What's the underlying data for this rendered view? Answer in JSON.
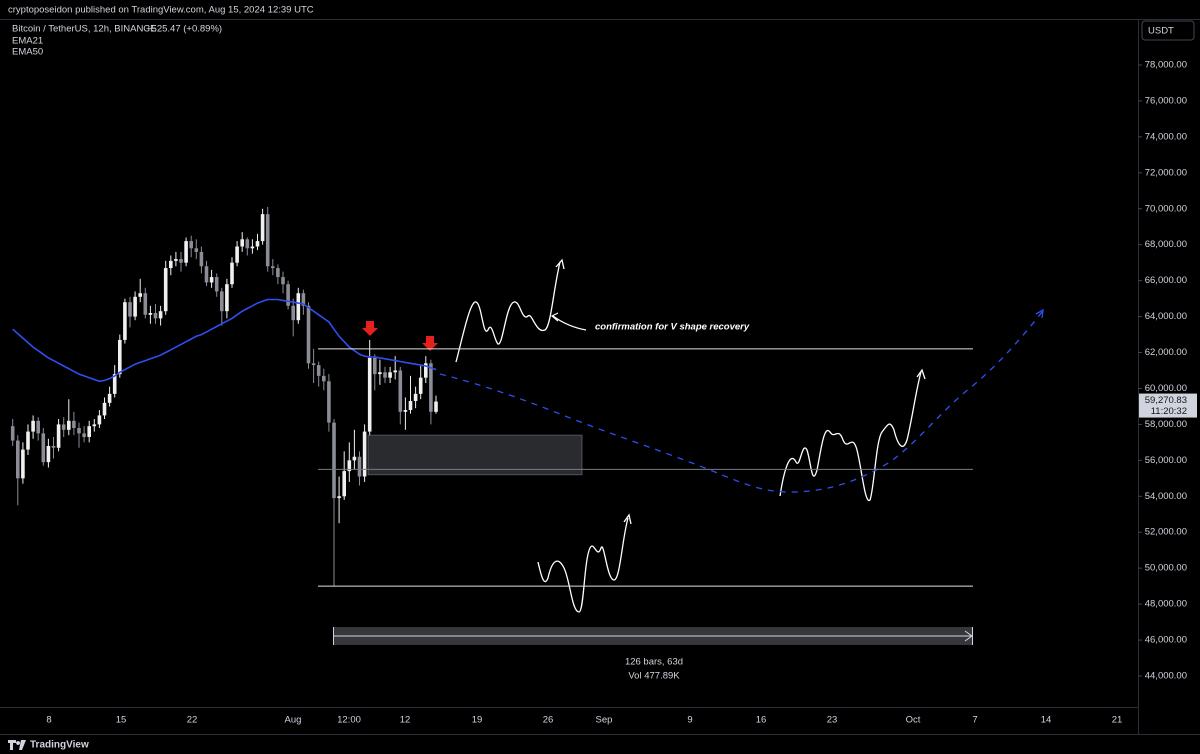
{
  "header": {
    "title": "cryptoposeidon published on TradingView.com, Aug 15, 2024 12:39 UTC",
    "brand": "TradingView"
  },
  "chart_data": {
    "type": "candlestick",
    "title": "Bitcoin / TetherUS, 12h, BINANCE",
    "change": "+525.47 (+0.89%)",
    "other_indicator": "EMA50",
    "currency": "USDT",
    "open": [
      57900,
      57100,
      55000,
      56600,
      57600,
      58200,
      57500,
      55900,
      56800,
      56700,
      58000,
      57700,
      58200,
      57800,
      57500,
      57300,
      57900,
      58000,
      58500,
      59200,
      59700,
      60800,
      62700,
      64800,
      64000,
      65100,
      65300,
      64100,
      64200,
      63900,
      64300,
      66700,
      67100,
      67200,
      67000,
      68200,
      67800,
      67600,
      66800,
      65900,
      66200,
      65400,
      64300,
      65800,
      67000,
      67900,
      68300,
      67800,
      67900,
      68200,
      69700,
      66800,
      66700,
      66200,
      65800,
      64600,
      63800,
      65300,
      64600,
      61400,
      61300,
      60700,
      60400,
      58100,
      53900,
      54000,
      55400,
      56000,
      56200,
      55100,
      57600,
      61700,
      60800,
      60900,
      60600,
      60900,
      61000,
      58700,
      58800,
      59300,
      59700,
      60600,
      61400,
      58700
    ],
    "high": [
      58300,
      57400,
      57000,
      58000,
      58500,
      58400,
      57800,
      57200,
      57300,
      58300,
      58400,
      59400,
      58700,
      58100,
      57900,
      58200,
      58300,
      58800,
      59500,
      60100,
      61300,
      63000,
      65000,
      65100,
      65400,
      66100,
      65600,
      64600,
      64700,
      64600,
      67100,
      67400,
      67600,
      67600,
      68400,
      68500,
      68300,
      67900,
      67100,
      66600,
      66400,
      65600,
      66100,
      67300,
      68200,
      68700,
      68400,
      68300,
      68600,
      70000,
      70100,
      67200,
      66900,
      66500,
      66000,
      65000,
      65600,
      65500,
      64800,
      62200,
      61500,
      61100,
      60800,
      58300,
      55100,
      56500,
      57000,
      57700,
      56500,
      58000,
      62700,
      61900,
      61600,
      61200,
      61200,
      61800,
      61200,
      59500,
      60700,
      60100,
      61300,
      61800,
      61600,
      59600
    ],
    "low": [
      56800,
      53500,
      54700,
      56300,
      57200,
      57100,
      55700,
      55600,
      56100,
      56500,
      57300,
      57400,
      57400,
      56700,
      57000,
      57000,
      57600,
      57800,
      58300,
      59000,
      59500,
      60600,
      62500,
      63400,
      63800,
      64800,
      63900,
      63600,
      63600,
      63500,
      64100,
      66300,
      66800,
      66500,
      66800,
      67300,
      67200,
      66400,
      65700,
      65600,
      65100,
      63500,
      63900,
      65600,
      66800,
      67600,
      67400,
      67500,
      67700,
      68000,
      66500,
      66300,
      65800,
      65300,
      64400,
      62900,
      63600,
      64100,
      61100,
      60300,
      60100,
      59900,
      57600,
      49000,
      52500,
      53800,
      54800,
      55500,
      54600,
      54800,
      57400,
      59900,
      60200,
      60300,
      60300,
      60500,
      58000,
      57700,
      58600,
      58900,
      59400,
      60300,
      58000,
      58600
    ],
    "close": [
      57100,
      55000,
      56600,
      57600,
      58200,
      57500,
      55900,
      56800,
      56700,
      58000,
      57700,
      58200,
      57800,
      57500,
      57300,
      57900,
      58000,
      58500,
      59200,
      59700,
      60800,
      62700,
      64800,
      64000,
      65100,
      65300,
      64100,
      64200,
      63900,
      64300,
      66700,
      67100,
      67200,
      67000,
      68200,
      67800,
      67600,
      66800,
      65900,
      66200,
      65400,
      64300,
      65800,
      67000,
      67900,
      68300,
      67800,
      67900,
      68200,
      69700,
      66800,
      66700,
      66200,
      65800,
      64600,
      63800,
      65300,
      64600,
      61400,
      61300,
      60700,
      60400,
      58100,
      53900,
      54000,
      55400,
      56000,
      56200,
      55100,
      57600,
      61700,
      60800,
      60900,
      60600,
      60900,
      61000,
      58700,
      58800,
      59300,
      59700,
      60600,
      61400,
      58700,
      59270.83
    ],
    "series": [
      {
        "name": "EMA21",
        "color": "#2e4ff0",
        "values": [
          63300,
          63050,
          62800,
          62550,
          62300,
          62100,
          61900,
          61700,
          61550,
          61400,
          61250,
          61100,
          60950,
          60800,
          60700,
          60600,
          60500,
          60400,
          60450,
          60550,
          60700,
          60900,
          61050,
          61200,
          61350,
          61450,
          61550,
          61650,
          61750,
          61850,
          62000,
          62150,
          62300,
          62450,
          62600,
          62750,
          62900,
          63000,
          63150,
          63300,
          63450,
          63600,
          63750,
          63900,
          64100,
          64300,
          64450,
          64600,
          64750,
          64850,
          64950,
          64950,
          64950,
          64900,
          64850,
          64800,
          64750,
          64700,
          64500,
          64300,
          64100,
          63900,
          63700,
          63300,
          62900,
          62600,
          62300,
          62100,
          61900,
          61800,
          61750,
          61750,
          61700,
          61650,
          61600,
          61550,
          61500,
          61450,
          61400,
          61350,
          61300,
          61250,
          61150,
          61050
        ]
      }
    ],
    "up_color": "#f0f0f0",
    "down_color": "#8a8d96",
    "ylim": [
      43000,
      79000
    ],
    "yticks": [
      {
        "value": 44000,
        "label": "44,000.00"
      },
      {
        "value": 46000,
        "label": "46,000.00"
      },
      {
        "value": 48000,
        "label": "48,000.00"
      },
      {
        "value": 50000,
        "label": "50,000.00"
      },
      {
        "value": 52000,
        "label": "52,000.00"
      },
      {
        "value": 54000,
        "label": "54,000.00"
      },
      {
        "value": 56000,
        "label": "56,000.00"
      },
      {
        "value": 58000,
        "label": "58,000.00"
      },
      {
        "value": 60000,
        "label": "60,000.00"
      },
      {
        "value": 62000,
        "label": "62,000.00"
      },
      {
        "value": 64000,
        "label": "64,000.00"
      },
      {
        "value": 66000,
        "label": "66,000.00"
      },
      {
        "value": 68000,
        "label": "68,000.00"
      },
      {
        "value": 70000,
        "label": "70,000.00"
      },
      {
        "value": 72000,
        "label": "72,000.00"
      },
      {
        "value": 74000,
        "label": "74,000.00"
      },
      {
        "value": 76000,
        "label": "76,000.00"
      },
      {
        "value": 78000,
        "label": "78,000.00"
      }
    ],
    "xtick_labels": [
      "8",
      "15",
      "22",
      "Aug",
      "12:00",
      "12",
      "19",
      "26",
      "Sep",
      "9",
      "16",
      "23",
      "Oct",
      "7",
      "14",
      "21"
    ],
    "last_price": {
      "value": 59270.83,
      "label": "59,270.83"
    },
    "countdown": "11:20:32",
    "levels": [
      62200,
      55500,
      49000
    ],
    "zone": [
      57400,
      55200
    ],
    "annotation": "confirmation for V shape recovery",
    "range_bars": "126 bars, 63d",
    "range_volume": "Vol 477.89K"
  }
}
